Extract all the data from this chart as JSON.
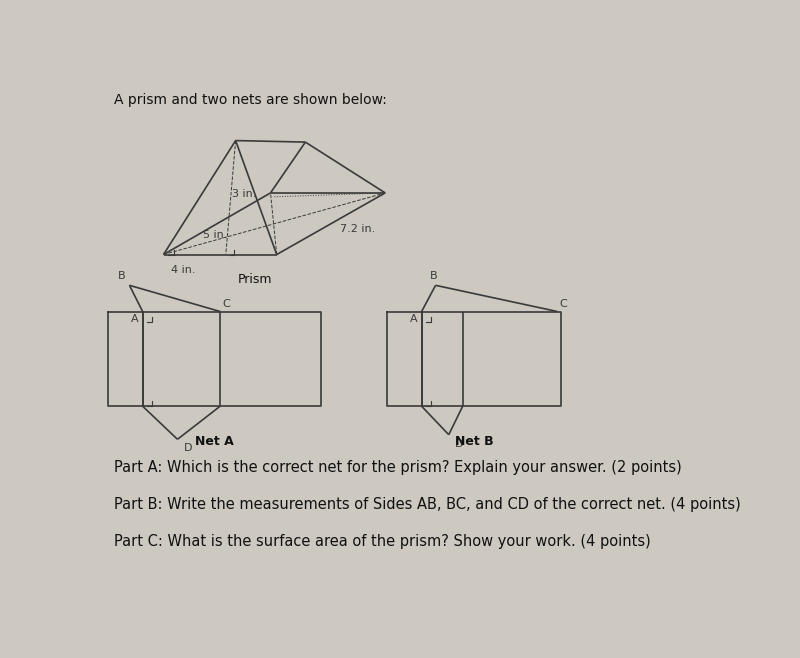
{
  "bg_color": "#cdc8c0",
  "title_text": "A prism and two nets are shown below:",
  "title_fontsize": 10,
  "prism_label": "Prism",
  "net_a_label": "Net A",
  "net_b_label": "Net B",
  "label_fontsize": 9,
  "part_a_text": "Part A: Which is the correct net for the prism? Explain your answer. (2 points)",
  "part_b_text": "Part B: Write the measurements of Sides AB, BC, and CD of the correct net. (4 points)",
  "part_c_text": "Part C: What is the surface area of the prism? Show your work. (4 points)",
  "parts_fontsize": 10.5,
  "dim_3in": "3 in.",
  "dim_5in": "5 in.",
  "dim_72in": "7.2 in.",
  "dim_4in": "4 in.",
  "line_color": "#3a3a3a"
}
